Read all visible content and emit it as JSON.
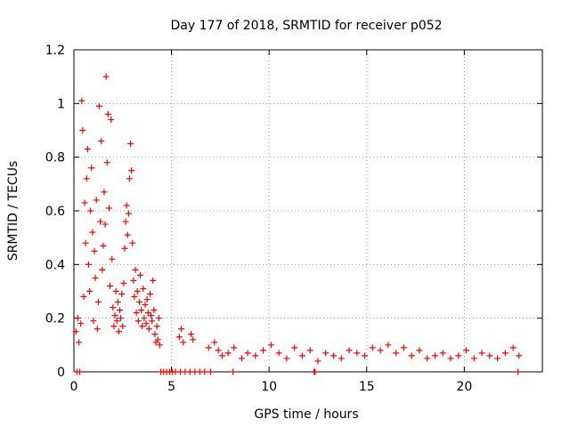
{
  "chart_data": {
    "type": "scatter",
    "title": "Day 177 of 2018, SRMTID for receiver p052",
    "xlabel": "GPS time / hours",
    "ylabel": "SRMTID / TECUs",
    "xlim": [
      0,
      24
    ],
    "ylim": [
      0,
      1.2
    ],
    "x_ticks": [
      0,
      5,
      10,
      15,
      20
    ],
    "x_tick_labels": [
      "0",
      "5",
      "10",
      "15",
      "20"
    ],
    "y_ticks": [
      0,
      0.2,
      0.4,
      0.6,
      0.8,
      1.0,
      1.2
    ],
    "y_tick_labels": [
      "0",
      "0.2",
      "0.4",
      "0.6",
      "0.8",
      "1",
      "1.2"
    ],
    "grid": true,
    "marker_color": "#ff0000",
    "series": [
      {
        "name": "SRMTID",
        "marker": "plus",
        "points": [
          [
            0.1,
            0.15
          ],
          [
            0.2,
            0.2
          ],
          [
            0.25,
            0.11
          ],
          [
            0.35,
            0.18
          ],
          [
            0.4,
            1.01
          ],
          [
            0.45,
            0.9
          ],
          [
            0.5,
            0.28
          ],
          [
            0.55,
            0.63
          ],
          [
            0.6,
            0.48
          ],
          [
            0.65,
            0.72
          ],
          [
            0.7,
            0.83
          ],
          [
            0.75,
            0.4
          ],
          [
            0.8,
            0.3
          ],
          [
            0.85,
            0.6
          ],
          [
            0.9,
            0.76
          ],
          [
            0.95,
            0.52
          ],
          [
            1.0,
            0.19
          ],
          [
            1.05,
            0.45
          ],
          [
            1.1,
            0.35
          ],
          [
            1.15,
            0.64
          ],
          [
            1.2,
            0.16
          ],
          [
            1.25,
            0.26
          ],
          [
            1.3,
            0.99
          ],
          [
            1.35,
            0.56
          ],
          [
            1.4,
            0.86
          ],
          [
            1.45,
            0.38
          ],
          [
            1.5,
            0.47
          ],
          [
            1.55,
            0.67
          ],
          [
            1.6,
            0.55
          ],
          [
            1.65,
            1.1
          ],
          [
            1.7,
            0.78
          ],
          [
            1.75,
            0.96
          ],
          [
            1.8,
            0.61
          ],
          [
            1.85,
            0.32
          ],
          [
            1.9,
            0.94
          ],
          [
            1.95,
            0.42
          ],
          [
            2.0,
            0.24
          ],
          [
            2.05,
            0.17
          ],
          [
            2.1,
            0.21
          ],
          [
            2.15,
            0.3
          ],
          [
            2.2,
            0.19
          ],
          [
            2.25,
            0.26
          ],
          [
            2.3,
            0.15
          ],
          [
            2.35,
            0.23
          ],
          [
            2.4,
            0.2
          ],
          [
            2.45,
            0.29
          ],
          [
            2.5,
            0.17
          ],
          [
            2.55,
            0.33
          ],
          [
            2.6,
            0.46
          ],
          [
            2.65,
            0.56
          ],
          [
            2.7,
            0.62
          ],
          [
            2.75,
            0.51
          ],
          [
            2.8,
            0.59
          ],
          [
            2.85,
            0.72
          ],
          [
            2.9,
            0.85
          ],
          [
            2.95,
            0.75
          ],
          [
            3.0,
            0.48
          ],
          [
            3.05,
            0.34
          ],
          [
            3.1,
            0.28
          ],
          [
            3.15,
            0.38
          ],
          [
            3.2,
            0.22
          ],
          [
            3.25,
            0.3
          ],
          [
            3.3,
            0.19
          ],
          [
            3.35,
            0.26
          ],
          [
            3.4,
            0.36
          ],
          [
            3.45,
            0.23
          ],
          [
            3.5,
            0.17
          ],
          [
            3.55,
            0.31
          ],
          [
            3.6,
            0.2
          ],
          [
            3.65,
            0.25
          ],
          [
            3.7,
            0.18
          ],
          [
            3.75,
            0.27
          ],
          [
            3.8,
            0.22
          ],
          [
            3.85,
            0.16
          ],
          [
            3.9,
            0.29
          ],
          [
            3.95,
            0.21
          ],
          [
            4.0,
            0.19
          ],
          [
            4.05,
            0.34
          ],
          [
            4.1,
            0.23
          ],
          [
            4.15,
            0.14
          ],
          [
            4.2,
            0.11
          ],
          [
            4.25,
            0.17
          ],
          [
            4.3,
            0.12
          ],
          [
            4.35,
            0.2
          ],
          [
            4.4,
            0.1
          ],
          [
            5.4,
            0.13
          ],
          [
            5.5,
            0.16
          ],
          [
            5.6,
            0.11
          ],
          [
            6.0,
            0.14
          ],
          [
            6.1,
            0.12
          ],
          [
            6.9,
            0.09
          ],
          [
            7.2,
            0.11
          ],
          [
            7.4,
            0.08
          ],
          [
            7.6,
            0.06
          ],
          [
            7.9,
            0.07
          ],
          [
            8.2,
            0.09
          ],
          [
            8.6,
            0.05
          ],
          [
            8.9,
            0.07
          ],
          [
            9.3,
            0.06
          ],
          [
            9.7,
            0.08
          ],
          [
            10.1,
            0.1
          ],
          [
            10.5,
            0.07
          ],
          [
            10.9,
            0.05
          ],
          [
            11.3,
            0.09
          ],
          [
            11.7,
            0.06
          ],
          [
            12.1,
            0.08
          ],
          [
            12.5,
            0.04
          ],
          [
            12.9,
            0.07
          ],
          [
            13.3,
            0.06
          ],
          [
            13.7,
            0.05
          ],
          [
            14.1,
            0.08
          ],
          [
            14.5,
            0.07
          ],
          [
            14.9,
            0.06
          ],
          [
            15.3,
            0.09
          ],
          [
            15.7,
            0.08
          ],
          [
            16.1,
            0.1
          ],
          [
            16.5,
            0.07
          ],
          [
            16.9,
            0.09
          ],
          [
            17.3,
            0.06
          ],
          [
            17.7,
            0.08
          ],
          [
            18.1,
            0.05
          ],
          [
            18.5,
            0.06
          ],
          [
            18.9,
            0.07
          ],
          [
            19.3,
            0.05
          ],
          [
            19.7,
            0.06
          ],
          [
            20.1,
            0.08
          ],
          [
            20.5,
            0.05
          ],
          [
            20.9,
            0.07
          ],
          [
            21.3,
            0.06
          ],
          [
            21.7,
            0.05
          ],
          [
            22.1,
            0.07
          ],
          [
            22.5,
            0.09
          ],
          [
            22.8,
            0.06
          ],
          [
            0.15,
            0.0
          ],
          [
            0.3,
            0.0
          ],
          [
            4.45,
            0.0
          ],
          [
            4.6,
            0.0
          ],
          [
            4.75,
            0.0
          ],
          [
            4.9,
            0.0
          ],
          [
            5.05,
            0.0
          ],
          [
            5.2,
            0.0
          ],
          [
            5.45,
            0.0
          ],
          [
            5.7,
            0.0
          ],
          [
            5.95,
            0.0
          ],
          [
            6.2,
            0.0
          ],
          [
            6.45,
            0.0
          ],
          [
            6.7,
            0.0
          ],
          [
            7.0,
            0.0
          ],
          [
            8.15,
            0.0
          ],
          [
            12.3,
            0.0
          ],
          [
            12.35,
            0.0
          ],
          [
            22.75,
            0.0
          ]
        ]
      }
    ]
  }
}
